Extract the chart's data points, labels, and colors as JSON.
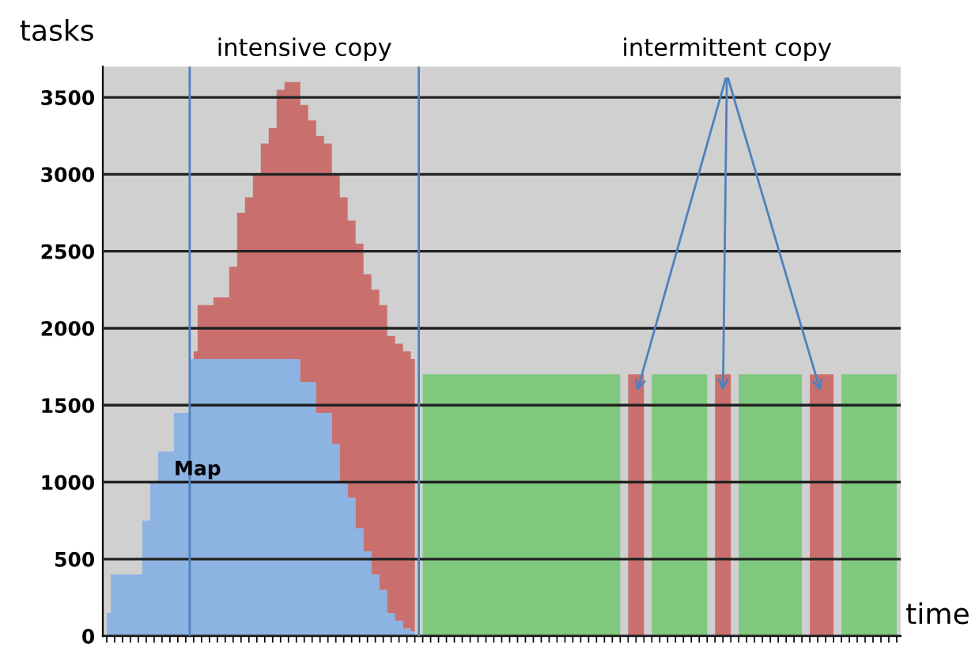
{
  "chart_data": {
    "type": "area",
    "stacked": true,
    "categories": [
      null,
      null,
      null,
      null,
      null,
      null,
      null,
      null,
      null,
      null,
      null,
      null,
      null,
      null,
      null,
      null,
      null,
      null,
      null,
      null,
      null,
      null,
      null,
      null,
      null,
      null,
      null,
      null,
      null,
      null,
      null,
      null,
      null,
      null,
      null,
      null,
      null,
      null,
      null,
      null,
      null,
      null,
      null,
      null,
      null,
      null,
      null,
      null,
      null,
      null,
      null,
      null,
      null,
      null,
      null,
      null,
      null,
      null,
      null,
      null,
      null,
      null,
      null,
      null,
      null,
      null,
      null,
      null,
      null,
      null,
      null,
      null,
      null,
      null,
      null,
      null,
      null,
      null,
      null,
      null,
      null,
      null,
      null,
      null,
      null,
      null,
      null,
      null,
      null,
      null,
      null,
      null,
      null,
      null,
      null,
      null,
      null,
      null,
      null,
      null,
      null
    ],
    "series": [
      {
        "name": "Map",
        "color": "#8db3e2",
        "values": [
          150,
          400,
          400,
          400,
          400,
          750,
          1000,
          1200,
          1200,
          1450,
          1450,
          1800,
          1800,
          1800,
          1800,
          1800,
          1800,
          1800,
          1800,
          1800,
          1800,
          1800,
          1800,
          1800,
          1800,
          1650,
          1650,
          1450,
          1450,
          1250,
          1000,
          900,
          700,
          550,
          400,
          300,
          150,
          100,
          50,
          30,
          null,
          null,
          null,
          null,
          null,
          null,
          null,
          null,
          null,
          null,
          null,
          null,
          null,
          null,
          null,
          null,
          null,
          null,
          null,
          null,
          null,
          null,
          null,
          null,
          null,
          null,
          null,
          null,
          null,
          null,
          null,
          null,
          null,
          null,
          null,
          null,
          null,
          null,
          null,
          null,
          null,
          null,
          null,
          null,
          null,
          null,
          null,
          null,
          null,
          null,
          null,
          null,
          null,
          null,
          null,
          null,
          null,
          null,
          null,
          null,
          null
        ]
      },
      {
        "color": "#c9706f",
        "values": [
          null,
          null,
          null,
          null,
          null,
          null,
          null,
          null,
          null,
          null,
          null,
          50,
          350,
          350,
          400,
          400,
          600,
          950,
          1050,
          1200,
          1400,
          1500,
          1750,
          1800,
          1800,
          1800,
          1700,
          1800,
          1750,
          1750,
          1850,
          1800,
          1850,
          1800,
          1850,
          1850,
          1800,
          1800,
          1800,
          1770,
          null,
          null,
          null,
          null,
          null,
          null,
          null,
          null,
          null,
          null,
          null,
          null,
          null,
          null,
          null,
          null,
          null,
          null,
          null,
          null,
          null,
          null,
          null,
          null,
          null,
          null,
          1700,
          1700,
          1700,
          null,
          null,
          null,
          null,
          null,
          null,
          null,
          null,
          1700,
          1700,
          1700,
          null,
          null,
          null,
          null,
          null,
          null,
          null,
          null,
          null,
          1700,
          1700,
          1700,
          1700,
          null,
          null,
          null,
          null,
          null,
          null,
          null,
          null
        ]
      },
      {
        "color": "#7ec97e",
        "values": [
          null,
          null,
          null,
          null,
          null,
          null,
          null,
          null,
          null,
          null,
          null,
          null,
          null,
          null,
          null,
          null,
          null,
          null,
          null,
          null,
          null,
          null,
          null,
          null,
          null,
          null,
          null,
          null,
          null,
          null,
          null,
          null,
          null,
          null,
          null,
          null,
          null,
          null,
          null,
          null,
          1700,
          1700,
          1700,
          1700,
          1700,
          1700,
          1700,
          1700,
          1700,
          1700,
          1700,
          1700,
          1700,
          1700,
          1700,
          1700,
          1700,
          1700,
          1700,
          1700,
          1700,
          1700,
          1700,
          1700,
          1700,
          1700,
          null,
          null,
          null,
          1700,
          1700,
          1700,
          1700,
          1700,
          1700,
          1700,
          1700,
          null,
          null,
          null,
          1700,
          1700,
          1700,
          1700,
          1700,
          1700,
          1700,
          1700,
          1700,
          null,
          null,
          null,
          null,
          1700,
          1700,
          1700,
          1700,
          1700,
          1700,
          1700,
          1700
        ]
      }
    ],
    "ylabel": "tasks",
    "xlabel": "time",
    "ylim": [
      0,
      3700
    ],
    "yticks": [
      0,
      500,
      1000,
      1500,
      2000,
      2500,
      3000,
      3500
    ],
    "grid": "y",
    "tick_labels": "y",
    "annotations": [
      "intensive copy",
      "intermittent copy"
    ]
  }
}
